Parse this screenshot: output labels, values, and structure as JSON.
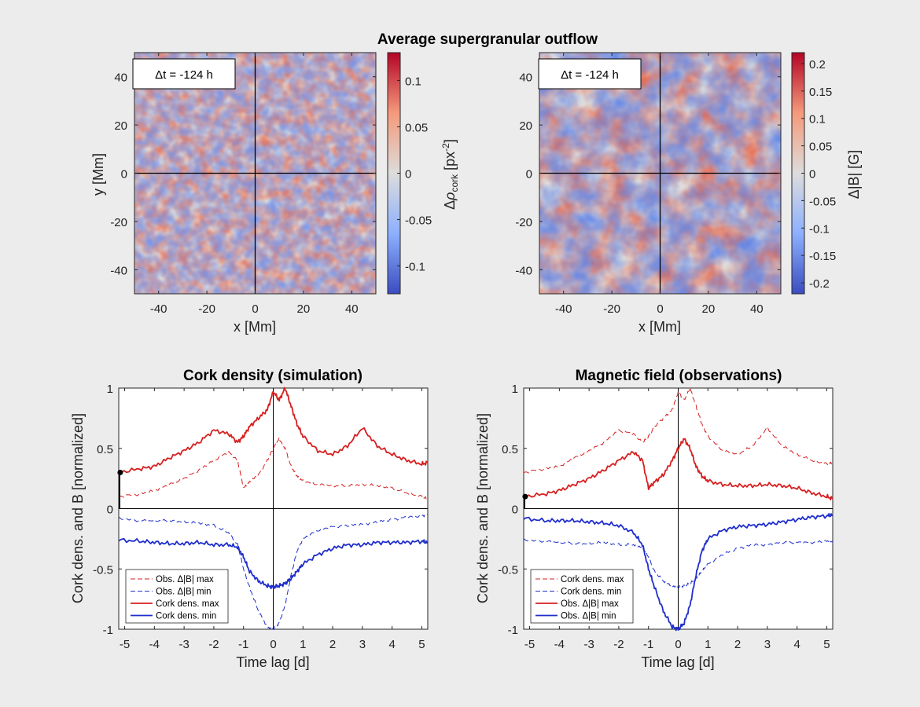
{
  "figure_title": "Average supergranular outflow",
  "chart_data": [
    {
      "id": "map-cork",
      "type": "heatmap",
      "xlabel": "x [Mm]",
      "ylabel": "y [Mm]",
      "xlim": [
        -50,
        50
      ],
      "ylim": [
        -50,
        50
      ],
      "xticks": [
        -40,
        -20,
        0,
        20,
        40
      ],
      "yticks": [
        40,
        20,
        0,
        -20,
        -40
      ],
      "time_label": "Δt = -124 h",
      "colorbar": {
        "label": "Δρcork [px⁻²]",
        "label_main": "Δ",
        "label_rho": "ρ",
        "label_sub": "cork",
        "label_unit": " [px",
        "label_exp": "-2",
        "label_close": "]",
        "range": [
          -0.13,
          0.13
        ],
        "ticks": [
          0.1,
          0.05,
          0,
          -0.05,
          -0.1
        ]
      },
      "colormap": [
        "#3a4cc0",
        "#8db0fe",
        "#dddcdc",
        "#f49a7b",
        "#b40426"
      ],
      "pattern": "fine"
    },
    {
      "id": "map-field",
      "type": "heatmap",
      "xlabel": "x [Mm]",
      "xlim": [
        -50,
        50
      ],
      "ylim": [
        -50,
        50
      ],
      "xticks": [
        -40,
        -20,
        0,
        20,
        40
      ],
      "yticks": [
        40,
        20,
        0,
        -20,
        -40
      ],
      "time_label": "Δt = -124 h",
      "colorbar": {
        "label": "Δ|B| [G]",
        "range": [
          -0.22,
          0.22
        ],
        "ticks": [
          0.2,
          0.15,
          0.1,
          0.05,
          0,
          -0.05,
          -0.1,
          -0.15,
          -0.2
        ]
      },
      "colormap": [
        "#3a4cc0",
        "#8db0fe",
        "#dddcdc",
        "#f49a7b",
        "#b40426"
      ],
      "pattern": "coarse"
    },
    {
      "id": "line-cork",
      "type": "line",
      "title": "Cork density (simulation)",
      "xlabel": "Time lag [d]",
      "ylabel": "Cork dens. and B [normalized]",
      "xlim": [
        -5.2,
        5.2
      ],
      "ylim": [
        -1,
        1
      ],
      "xticks": [
        -5,
        -4,
        -3,
        -2,
        -1,
        0,
        1,
        2,
        3,
        4,
        5
      ],
      "yticks": [
        1,
        0.5,
        0,
        -0.5,
        -1
      ],
      "current_marker": {
        "x": -5.15,
        "y": 0.3
      },
      "legend_position": "bottom-left",
      "x": [
        -5.2,
        -4.5,
        -4.0,
        -3.5,
        -3.0,
        -2.5,
        -2.0,
        -1.5,
        -1.2,
        -1.0,
        -0.8,
        -0.5,
        -0.2,
        0.0,
        0.2,
        0.4,
        0.6,
        0.8,
        1.0,
        1.5,
        2.0,
        2.5,
        3.0,
        3.5,
        4.0,
        4.5,
        5.0,
        5.2
      ],
      "series": [
        {
          "name": "Obs. Δ|B| max",
          "color": "#d62020",
          "style": "dashed",
          "width": 1,
          "values": [
            0.1,
            0.12,
            0.15,
            0.2,
            0.25,
            0.32,
            0.4,
            0.47,
            0.4,
            0.17,
            0.22,
            0.28,
            0.4,
            0.5,
            0.58,
            0.5,
            0.35,
            0.27,
            0.23,
            0.2,
            0.19,
            0.19,
            0.2,
            0.19,
            0.17,
            0.13,
            0.1,
            0.08
          ]
        },
        {
          "name": "Obs. Δ|B| min",
          "color": "#1f2ecc",
          "style": "dashed",
          "width": 1,
          "values": [
            -0.08,
            -0.1,
            -0.1,
            -0.1,
            -0.11,
            -0.12,
            -0.14,
            -0.2,
            -0.3,
            -0.5,
            -0.65,
            -0.85,
            -0.98,
            -1.0,
            -0.95,
            -0.8,
            -0.55,
            -0.35,
            -0.25,
            -0.18,
            -0.15,
            -0.14,
            -0.13,
            -0.11,
            -0.09,
            -0.07,
            -0.06,
            -0.05
          ]
        },
        {
          "name": "Cork dens. max",
          "color": "#d62020",
          "style": "solid",
          "width": 1.8,
          "values": [
            0.3,
            0.33,
            0.35,
            0.42,
            0.48,
            0.55,
            0.65,
            0.62,
            0.55,
            0.6,
            0.68,
            0.75,
            0.82,
            0.97,
            0.9,
            1.0,
            0.85,
            0.7,
            0.6,
            0.48,
            0.45,
            0.52,
            0.67,
            0.52,
            0.45,
            0.4,
            0.37,
            0.38
          ]
        },
        {
          "name": "Cork dens. min",
          "color": "#1f2ecc",
          "style": "solid",
          "width": 1.8,
          "values": [
            -0.26,
            -0.27,
            -0.28,
            -0.29,
            -0.29,
            -0.28,
            -0.3,
            -0.3,
            -0.32,
            -0.4,
            -0.52,
            -0.6,
            -0.64,
            -0.65,
            -0.64,
            -0.62,
            -0.58,
            -0.52,
            -0.46,
            -0.38,
            -0.33,
            -0.3,
            -0.3,
            -0.28,
            -0.28,
            -0.28,
            -0.27,
            -0.28
          ]
        }
      ]
    },
    {
      "id": "line-field",
      "type": "line",
      "title": "Magnetic field (observations)",
      "xlabel": "Time lag [d]",
      "ylabel": "Cork dens. and B [normalized]",
      "xlim": [
        -5.2,
        5.2
      ],
      "ylim": [
        -1,
        1
      ],
      "xticks": [
        -5,
        -4,
        -3,
        -2,
        -1,
        0,
        1,
        2,
        3,
        4,
        5
      ],
      "yticks": [
        1,
        0.5,
        0,
        -0.5,
        -1
      ],
      "current_marker": {
        "x": -5.15,
        "y": 0.1
      },
      "legend_position": "bottom-left",
      "x": [
        -5.2,
        -4.5,
        -4.0,
        -3.5,
        -3.0,
        -2.5,
        -2.0,
        -1.5,
        -1.2,
        -1.0,
        -0.8,
        -0.5,
        -0.2,
        0.0,
        0.2,
        0.4,
        0.6,
        0.8,
        1.0,
        1.5,
        2.0,
        2.5,
        3.0,
        3.5,
        4.0,
        4.5,
        5.0,
        5.2
      ],
      "series": [
        {
          "name": "Cork dens. max",
          "color": "#d62020",
          "style": "dashed",
          "width": 1,
          "values": [
            0.3,
            0.33,
            0.35,
            0.42,
            0.48,
            0.55,
            0.65,
            0.62,
            0.55,
            0.6,
            0.68,
            0.75,
            0.82,
            0.97,
            0.9,
            1.0,
            0.85,
            0.7,
            0.6,
            0.48,
            0.45,
            0.52,
            0.67,
            0.52,
            0.45,
            0.4,
            0.37,
            0.38
          ]
        },
        {
          "name": "Cork dens. min",
          "color": "#1f2ecc",
          "style": "dashed",
          "width": 1,
          "values": [
            -0.26,
            -0.27,
            -0.28,
            -0.29,
            -0.29,
            -0.28,
            -0.3,
            -0.3,
            -0.32,
            -0.4,
            -0.52,
            -0.6,
            -0.64,
            -0.65,
            -0.64,
            -0.62,
            -0.58,
            -0.52,
            -0.46,
            -0.38,
            -0.33,
            -0.3,
            -0.3,
            -0.28,
            -0.28,
            -0.28,
            -0.27,
            -0.28
          ]
        },
        {
          "name": "Obs. Δ|B| max",
          "color": "#d62020",
          "style": "solid",
          "width": 1.8,
          "values": [
            0.1,
            0.12,
            0.15,
            0.2,
            0.25,
            0.32,
            0.4,
            0.47,
            0.4,
            0.17,
            0.22,
            0.28,
            0.4,
            0.5,
            0.58,
            0.5,
            0.35,
            0.27,
            0.23,
            0.2,
            0.19,
            0.19,
            0.2,
            0.19,
            0.17,
            0.13,
            0.1,
            0.08
          ]
        },
        {
          "name": "Obs. Δ|B| min",
          "color": "#1f2ecc",
          "style": "solid",
          "width": 1.8,
          "values": [
            -0.08,
            -0.1,
            -0.1,
            -0.1,
            -0.11,
            -0.12,
            -0.14,
            -0.2,
            -0.3,
            -0.5,
            -0.65,
            -0.85,
            -0.98,
            -1.0,
            -0.95,
            -0.8,
            -0.55,
            -0.35,
            -0.25,
            -0.18,
            -0.15,
            -0.14,
            -0.13,
            -0.11,
            -0.09,
            -0.07,
            -0.06,
            -0.05
          ]
        }
      ]
    }
  ]
}
